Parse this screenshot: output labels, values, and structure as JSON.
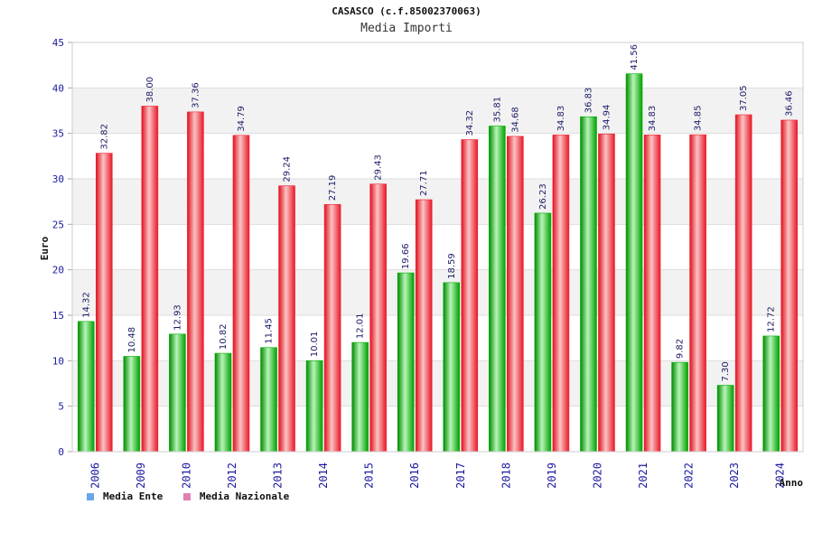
{
  "header": {
    "title": "CASASCO (c.f.85002370063)",
    "subtitle": "Media Importi"
  },
  "legend": {
    "items": [
      {
        "label": "Media Ente",
        "color": "#6aa6e8"
      },
      {
        "label": "Media Nazionale",
        "color": "#e080b0"
      }
    ]
  },
  "colors": {
    "ente": "#00b000",
    "ente_light": "#9cf09c",
    "nazionale": "#ee2233",
    "nazionale_light": "#f8b0b0",
    "axis_text": "#1a1aa0",
    "band": "#f2f2f2"
  },
  "chart_data": {
    "type": "bar",
    "title": "CASASCO (c.f.85002370063)",
    "subtitle": "Media Importi",
    "xlabel": "Anno",
    "ylabel": "Euro",
    "ylim": [
      0,
      45
    ],
    "yticks": [
      0,
      5,
      10,
      15,
      20,
      25,
      30,
      35,
      40,
      45
    ],
    "grid": true,
    "legend_position": "bottom-left",
    "categories": [
      "2006",
      "2009",
      "2010",
      "2012",
      "2013",
      "2014",
      "2015",
      "2016",
      "2017",
      "2018",
      "2019",
      "2020",
      "2021",
      "2022",
      "2023",
      "2024"
    ],
    "series": [
      {
        "name": "Media Ente",
        "values": [
          14.32,
          10.48,
          12.93,
          10.82,
          11.45,
          10.01,
          12.01,
          19.66,
          18.59,
          35.81,
          26.23,
          36.83,
          41.56,
          9.82,
          7.3,
          12.72
        ],
        "labels": [
          "14.32",
          "10.48",
          "12.93",
          "10.82",
          "11.45",
          "10.01",
          "12.01",
          "19.66",
          "18.59",
          "35.81",
          "26.23",
          "36.83",
          "41.56",
          "9.82",
          "7.30",
          "12.72"
        ]
      },
      {
        "name": "Media Nazionale",
        "values": [
          32.82,
          38.0,
          37.36,
          34.79,
          29.24,
          27.19,
          29.43,
          27.71,
          34.32,
          34.68,
          34.83,
          34.94,
          34.83,
          34.85,
          37.05,
          36.46
        ],
        "labels": [
          "32.82",
          "38.00",
          "37.36",
          "34.79",
          "29.24",
          "27.19",
          "29.43",
          "27.71",
          "34.32",
          "34.68",
          "34.83",
          "34.94",
          "34.83",
          "34.85",
          "37.05",
          "36.46"
        ]
      }
    ]
  }
}
